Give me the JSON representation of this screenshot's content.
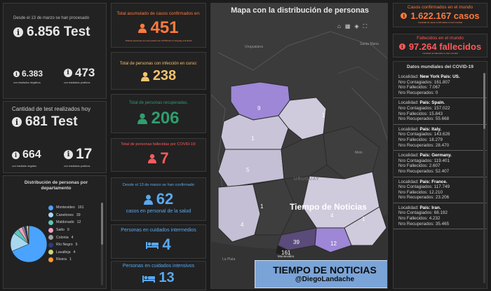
{
  "tests": {
    "label": "Desde el 13 de marzo se han procesado",
    "total": "6.856 Test",
    "negative": "6.383",
    "negative_label": "con resultados negativos",
    "positive": "473",
    "positive_label": "con resultados positivos"
  },
  "today": {
    "label": "Cantidad de test realizados hoy",
    "total": "681 Test",
    "negative": "664",
    "negative_label": "con resultado negativo",
    "positive": "17",
    "positive_label": "con resultados positivos"
  },
  "distribution": {
    "title": "Distribución de personas por departamento",
    "items": [
      {
        "label": "Montevideo",
        "value": 161,
        "color": "#4aa3ff"
      },
      {
        "label": "Canelones",
        "value": 39,
        "color": "#a8d8f0"
      },
      {
        "label": "Maldonado",
        "value": 12,
        "color": "#59c6b7"
      },
      {
        "label": "Salto",
        "value": 9,
        "color": "#f0a0c0"
      },
      {
        "label": "Colonia",
        "value": 4,
        "color": "#a0a0a0"
      },
      {
        "label": "Río Negro",
        "value": 5,
        "color": "#2f3b7a"
      },
      {
        "label": "Lavalleja",
        "value": 4,
        "color": "#cbd97a"
      },
      {
        "label": "Rivera",
        "value": 1,
        "color": "#ff9a30"
      }
    ]
  },
  "acumulado": {
    "title": "Total acumulado de casos confirmados en:",
    "value": "451",
    "note": "Total de personas con test positivo de COVID-19 en Uruguay a la fecha",
    "color": "#ff7a3d"
  },
  "curso": {
    "title": "Total de personas con infección en curso:",
    "value": "238",
    "color": "#f5c26b"
  },
  "recuperadas": {
    "title": "Total de personas recuperadas.",
    "value": "206",
    "color": "#2e9e6e"
  },
  "fallecidas": {
    "title": "Total de personas fallecidas por COVID-19:",
    "value": "7",
    "color": "#ff5a5a"
  },
  "salud": {
    "title": "Desde el 13 de marzo se han confirmado",
    "value": "62",
    "subtitle": "casos en personal de la salud",
    "color": "#5aa8f0"
  },
  "intermedios": {
    "title": "Personas en cuidados intermedios",
    "value": "4",
    "color": "#5aa8f0"
  },
  "intensivos": {
    "title": "Personas en cuidados intensivos",
    "value": "13",
    "color": "#5aa8f0"
  },
  "map": {
    "title": "Mapa con la distribución de personas",
    "region_labels": [
      "9",
      "1",
      "1",
      "5",
      "1",
      "4",
      "4",
      "1",
      "39",
      "12",
      "161"
    ],
    "place_labels": {
      "uruguaiana": "Uruguaiana",
      "santa_maria": "Santa Maria",
      "uruguay": "URUGUAY",
      "melo": "Melo",
      "la_plata": "La Plata",
      "montevideo": "Montevideo"
    },
    "watermark": "Tiempo de Noticias",
    "banner": {
      "title": "TIEMPO DE NOTICIAS",
      "handle": "@DiegoLandache"
    },
    "logos": {
      "sinae": "sinae",
      "sinae_sub": "SISTEMA NACIONAL DE EMERGENCIAS",
      "mira": "mira"
    }
  },
  "world": {
    "cases_label": "Casos confirmados en el mundo",
    "cases_value": "1.622.167 casos",
    "cases_note": "Cantidad de casos confirmados a nivel mundial",
    "deaths_label": "Fallecidos en el mundo",
    "deaths_value": "97.264 fallecidos",
    "deaths_note": "Cantidad de fallecidos a nivel mundial",
    "list_title": "Datos mundiales del COVID-19",
    "countries": [
      {
        "country": "New York Pais: US.",
        "contagiados": "161.807",
        "fallecidos": "7.067",
        "recuperados": "0"
      },
      {
        "country": "Pais: Spain.",
        "contagiados": "157.022",
        "fallecidos": "15.843",
        "recuperados": "55.668"
      },
      {
        "country": "Pais: Italy.",
        "contagiados": "143.626",
        "fallecidos": "18.279",
        "recuperados": "28.470"
      },
      {
        "country": "Pais: Germany.",
        "contagiados": "119.401",
        "fallecidos": "2.607",
        "recuperados": "52.407"
      },
      {
        "country": "Pais: France.",
        "contagiados": "117.749",
        "fallecidos": "12.210",
        "recuperados": "23.206"
      },
      {
        "country": "Pais: Iran.",
        "contagiados": "68.192",
        "fallecidos": "4.232",
        "recuperados": "35.465"
      }
    ],
    "labels": {
      "localidad": "Localidad:",
      "contagiados": "Nro Contagiados:",
      "fallecidos": "Nro Fallecidos:",
      "recuperados": "Nro Recuperados:"
    }
  }
}
